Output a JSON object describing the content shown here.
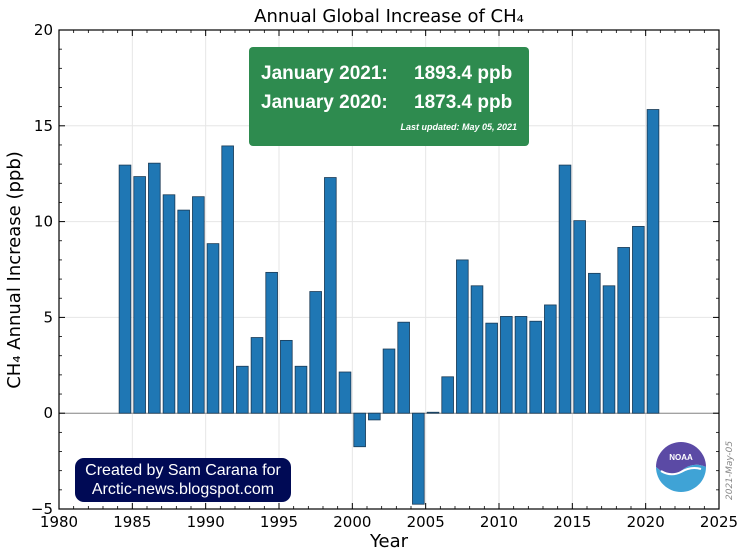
{
  "chart_data": {
    "type": "bar",
    "title": "Annual Global Increase of CH₄",
    "xlabel": "Year",
    "ylabel": "CH₄ Annual Increase (ppb)",
    "xlim": [
      1980,
      2025
    ],
    "ylim": [
      -5,
      20
    ],
    "xticks": [
      "1980",
      "1985",
      "1990",
      "1995",
      "2000",
      "2005",
      "2010",
      "2015",
      "2020",
      "2025"
    ],
    "yticks": [
      "−5",
      "0",
      "5",
      "10",
      "15",
      "20"
    ],
    "grid": true,
    "bar_color": "#1f77b4",
    "x": [
      1984,
      1985,
      1986,
      1987,
      1988,
      1989,
      1990,
      1991,
      1992,
      1993,
      1994,
      1995,
      1996,
      1997,
      1998,
      1999,
      2000,
      2001,
      2002,
      2003,
      2004,
      2005,
      2006,
      2007,
      2008,
      2009,
      2010,
      2011,
      2012,
      2013,
      2014,
      2015,
      2016,
      2017,
      2018,
      2019,
      2020
    ],
    "values": [
      12.95,
      12.35,
      13.05,
      11.4,
      10.6,
      11.3,
      8.85,
      13.95,
      2.45,
      3.95,
      7.35,
      3.8,
      2.45,
      6.35,
      12.3,
      2.15,
      -1.75,
      -0.35,
      3.35,
      4.75,
      -4.75,
      0.05,
      1.9,
      8.0,
      6.65,
      4.7,
      5.05,
      5.05,
      4.8,
      5.65,
      12.95,
      10.05,
      7.3,
      6.65,
      8.65,
      9.75,
      15.85
    ]
  },
  "info_box": {
    "row1_label": "January 2021:",
    "row1_value": "1893.4 ppb",
    "row2_label": "January 2020:",
    "row2_value": "1873.4 ppb",
    "updated": "Last updated: May 05, 2021",
    "color": "#2e8b4f"
  },
  "credit": {
    "line1": "Created by Sam Carana for",
    "line2": "Arctic-news.blogspot.com",
    "color": "#000a55"
  },
  "date_stamp": "2021-May-05",
  "logo": {
    "text": "NOAA",
    "icon": "noaa-logo-icon"
  }
}
